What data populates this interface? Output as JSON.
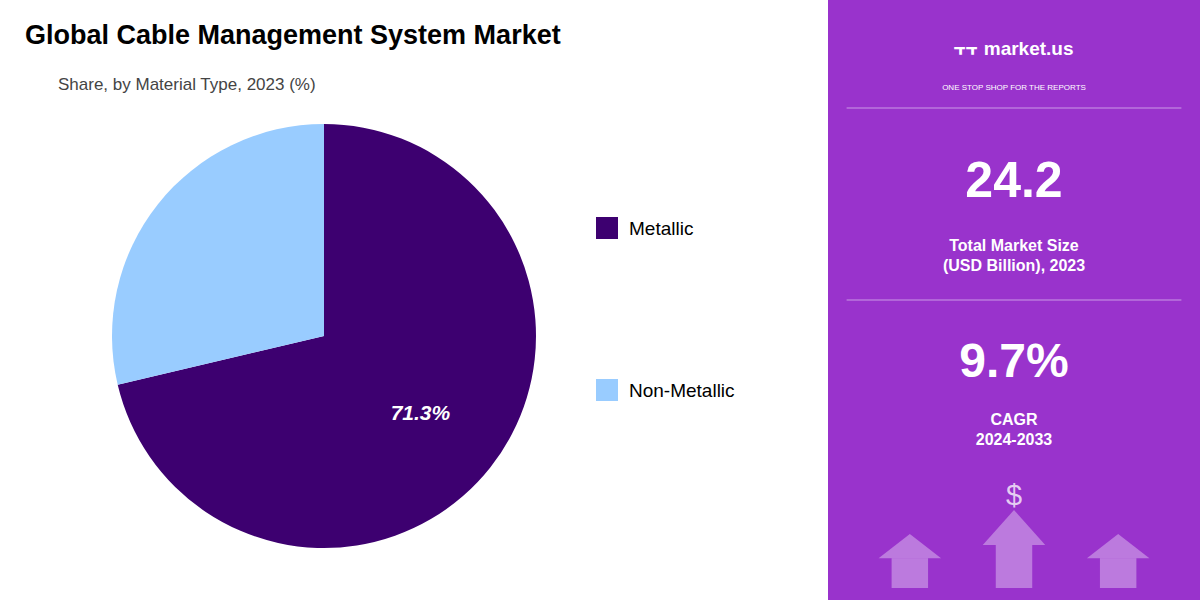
{
  "chart_data": {
    "type": "pie",
    "title": "Global Cable Management System Market",
    "subtitle": "Share, by Material Type, 2023 (%)",
    "categories": [
      "Metallic",
      "Non-Metallic"
    ],
    "values": [
      71.3,
      28.7
    ],
    "value_labels": [
      "71.3%",
      null
    ],
    "colors": [
      "#3d0070",
      "#99ccff"
    ],
    "legend": "right",
    "annotations": [
      "⫟⫟  market.us",
      "ONE STOP SHOP FOR THE REPORTS",
      "24.2",
      "Total Market Size\n(USD Billion), 2023",
      "9.7%",
      "CAGR\n2024-2033",
      "$"
    ]
  }
}
